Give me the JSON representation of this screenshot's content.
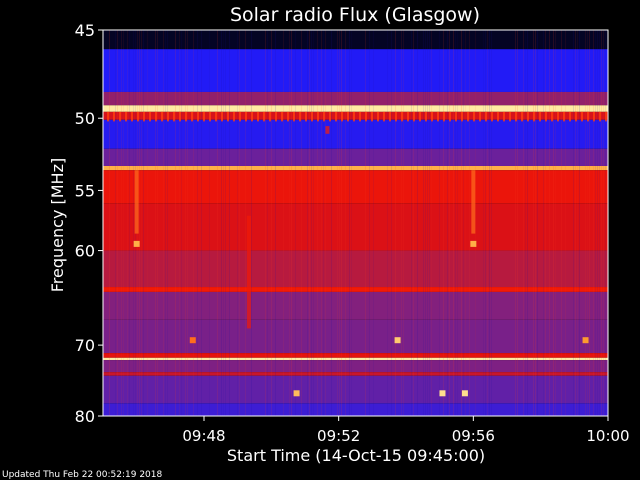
{
  "chart_data": {
    "type": "heatmap",
    "title": "Solar radio Flux (Glasgow)",
    "xlabel": "Start Time (14-Oct-15 09:45:00)",
    "ylabel": "Frequency [MHz]",
    "xlim": [
      "09:45:00",
      "10:00:00"
    ],
    "ylim": [
      45,
      80
    ],
    "y_ticks": [
      45,
      50,
      55,
      60,
      70,
      80
    ],
    "x_ticks": [
      "09:48",
      "09:52",
      "09:56",
      "10:00"
    ],
    "y_scale": "reciprocal",
    "colormap": [
      "#000000",
      "#1a1aff",
      "#5a20b0",
      "#a0205a",
      "#e01010",
      "#ff2000",
      "#ffa030",
      "#ffffc0"
    ],
    "bands": [
      {
        "from": 45.0,
        "to": 46.0,
        "intensity": 0.02
      },
      {
        "from": 46.0,
        "to": 48.4,
        "intensity": 0.16
      },
      {
        "from": 48.4,
        "to": 49.2,
        "intensity": 0.4
      },
      {
        "from": 49.2,
        "to": 49.6,
        "intensity": 0.97
      },
      {
        "from": 49.6,
        "to": 50.1,
        "intensity": 0.55
      },
      {
        "from": 50.1,
        "to": 52.0,
        "intensity": 0.17
      },
      {
        "from": 52.0,
        "to": 53.2,
        "intensity": 0.32
      },
      {
        "from": 53.2,
        "to": 53.5,
        "intensity": 0.88
      },
      {
        "from": 53.5,
        "to": 56.0,
        "intensity": 0.62
      },
      {
        "from": 56.0,
        "to": 60.0,
        "intensity": 0.56
      },
      {
        "from": 60.0,
        "to": 63.5,
        "intensity": 0.48
      },
      {
        "from": 63.5,
        "to": 64.0,
        "intensity": 0.66
      },
      {
        "from": 64.0,
        "to": 67.0,
        "intensity": 0.37
      },
      {
        "from": 67.0,
        "to": 71.0,
        "intensity": 0.35
      },
      {
        "from": 71.0,
        "to": 71.6,
        "intensity": 0.6
      },
      {
        "from": 71.6,
        "to": 71.9,
        "intensity": 0.97
      },
      {
        "from": 71.9,
        "to": 73.5,
        "intensity": 0.36
      },
      {
        "from": 73.5,
        "to": 74.0,
        "intensity": 0.52
      },
      {
        "from": 74.0,
        "to": 78.0,
        "intensity": 0.3
      },
      {
        "from": 78.0,
        "to": 80.0,
        "intensity": 0.22
      }
    ],
    "bursts": [
      {
        "time": "09:46:00",
        "from": 53.5,
        "to": 58.5,
        "intensity": 0.8
      },
      {
        "time": "09:56:00",
        "from": 53.5,
        "to": 58.5,
        "intensity": 0.8
      },
      {
        "time": "09:49:20",
        "from": 57.0,
        "to": 68.0,
        "intensity": 0.65
      },
      {
        "time": "09:51:40",
        "from": 50.5,
        "to": 51.0,
        "intensity": 0.7
      }
    ],
    "spots": [
      {
        "time": "09:46:00",
        "freq": 59.4,
        "intensity": 0.88
      },
      {
        "time": "09:56:00",
        "freq": 59.4,
        "intensity": 0.88
      },
      {
        "time": "09:53:45",
        "freq": 69.4,
        "intensity": 0.92
      },
      {
        "time": "09:50:45",
        "freq": 76.5,
        "intensity": 0.9
      },
      {
        "time": "09:55:05",
        "freq": 76.5,
        "intensity": 0.95
      },
      {
        "time": "09:55:45",
        "freq": 76.5,
        "intensity": 0.95
      },
      {
        "time": "09:59:20",
        "freq": 69.4,
        "intensity": 0.85
      },
      {
        "time": "09:47:40",
        "freq": 69.4,
        "intensity": 0.8
      }
    ]
  },
  "footer": {
    "updated": "Updated Thu Feb 22 00:52:19 2018"
  }
}
